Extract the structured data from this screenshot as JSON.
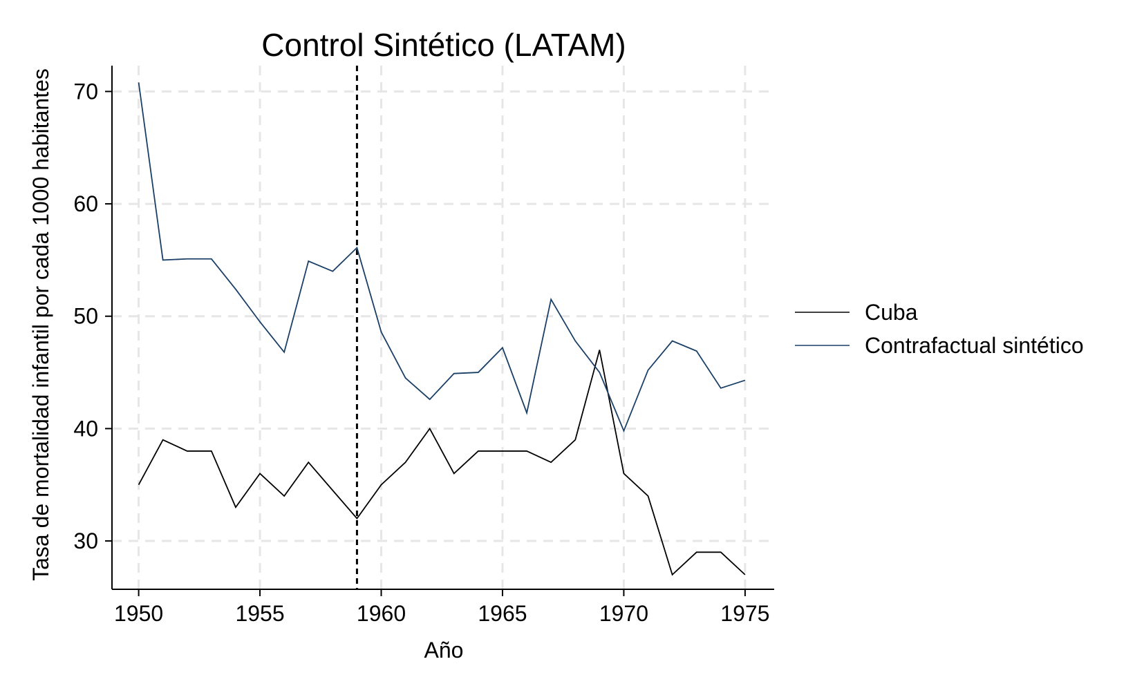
{
  "chart_data": {
    "type": "line",
    "title": "Control Sintético (LATAM)",
    "xlabel": "Año",
    "ylabel": "Tasa de mortalidad infantil por cada 1000 habitantes",
    "x": [
      1950,
      1951,
      1952,
      1953,
      1954,
      1955,
      1956,
      1957,
      1958,
      1959,
      1960,
      1961,
      1962,
      1963,
      1964,
      1965,
      1966,
      1967,
      1968,
      1969,
      1970,
      1971,
      1972,
      1973,
      1974,
      1975
    ],
    "xlim": [
      1948.9,
      1976.2
    ],
    "ylim": [
      25.7,
      72.3
    ],
    "xticks": [
      1950,
      1955,
      1960,
      1965,
      1970,
      1975
    ],
    "yticks": [
      30,
      40,
      50,
      60,
      70
    ],
    "xtick_labels": [
      "1950",
      "1955",
      "1960",
      "1965",
      "1970",
      "1975"
    ],
    "ytick_labels": [
      "30",
      "40",
      "50",
      "60",
      "70"
    ],
    "grid": true,
    "vline": 1959,
    "legend_position": "right",
    "series": [
      {
        "name": "Cuba",
        "color": "#000000",
        "values": [
          35,
          39,
          38,
          38,
          33,
          36,
          34,
          37,
          34.5,
          32,
          35,
          37,
          40,
          36,
          38,
          38,
          38,
          37,
          39,
          47,
          36,
          34,
          27,
          29,
          29,
          27
        ]
      },
      {
        "name": "Contrafactual sintético",
        "color": "#1a3f66",
        "values": [
          70.8,
          55,
          55.1,
          55.1,
          52.4,
          49.5,
          46.8,
          54.9,
          54,
          56.1,
          48.6,
          44.5,
          42.6,
          44.9,
          45,
          47.2,
          41.4,
          51.5,
          47.8,
          45,
          39.8,
          45.2,
          47.8,
          46.9,
          43.6,
          44.3
        ]
      }
    ]
  }
}
